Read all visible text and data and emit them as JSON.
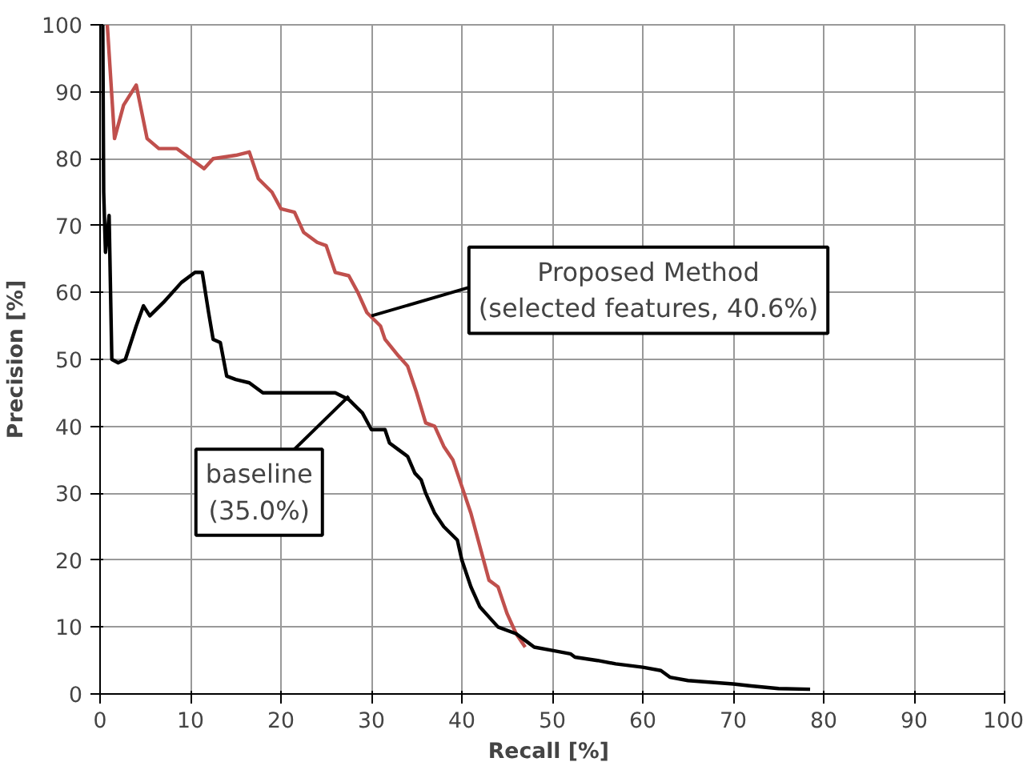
{
  "chart_data": {
    "type": "line",
    "xlabel": "Recall  [%]",
    "ylabel": "Precision [%]",
    "xlim": [
      0,
      100
    ],
    "ylim": [
      0,
      100
    ],
    "xticks": [
      0,
      10,
      20,
      30,
      40,
      50,
      60,
      70,
      80,
      90,
      100
    ],
    "yticks": [
      0,
      10,
      20,
      30,
      40,
      50,
      60,
      70,
      80,
      90,
      100
    ],
    "grid": true,
    "series": [
      {
        "color": "#c0504d",
        "x": [
          0.8,
          1.6,
          2.6,
          4,
          5.2,
          6.5,
          8.5,
          10,
          11.5,
          12.5,
          15,
          16.5,
          17.5,
          19,
          20,
          21.5,
          22.5,
          24,
          25,
          26,
          27.5,
          28.5,
          29.5,
          31,
          31.5,
          33,
          34,
          35,
          36,
          37,
          38,
          39,
          40,
          41,
          42,
          43,
          44,
          45,
          46,
          47
        ],
        "values": [
          100,
          83,
          88,
          91,
          83,
          81.5,
          81.5,
          80,
          78.5,
          80,
          80.5,
          81,
          77,
          75,
          72.5,
          72,
          69,
          67.5,
          67,
          63,
          62.5,
          60,
          57,
          55,
          53,
          50.5,
          49,
          45,
          40.5,
          40,
          37,
          35,
          31,
          27,
          22,
          17,
          16,
          12,
          9,
          7
        ]
      },
      {
        "color": "#000000",
        "x": [
          0.3,
          0.4,
          0.6,
          1,
          1.3,
          2,
          2.8,
          4,
          4.8,
          5.5,
          7,
          9,
          10.5,
          11.3,
          12,
          12.5,
          13.3,
          14,
          15,
          16.5,
          18,
          20,
          22,
          24,
          26,
          27.5,
          29,
          30,
          31.5,
          32,
          33,
          34,
          34.8,
          35.5,
          36,
          37,
          38,
          39.5,
          40,
          41,
          42,
          43,
          44,
          46,
          47,
          48,
          50,
          52,
          52.5,
          55,
          57,
          60,
          62,
          63,
          65,
          70,
          72,
          75,
          78.5
        ],
        "values": [
          100,
          75,
          66,
          71.5,
          50,
          49.5,
          50,
          55,
          58,
          56.5,
          58.5,
          61.5,
          63,
          63,
          57,
          53,
          52.5,
          47.5,
          47,
          46.5,
          45,
          45,
          45,
          45,
          45,
          44,
          42,
          39.5,
          39.5,
          37.5,
          36.5,
          35.5,
          33,
          32,
          30,
          27,
          25,
          23,
          20,
          16,
          13,
          11.5,
          10,
          9,
          8,
          7,
          6.5,
          6,
          5.5,
          5,
          4.5,
          4,
          3.5,
          2.5,
          2,
          1.5,
          1.2,
          0.8,
          0.7
        ]
      }
    ],
    "annotations": [
      {
        "text": "Proposed Method\n(selected features, 40.6%)",
        "x": 30,
        "y": 56.5
      },
      {
        "text": "baseline\n(35.0%)",
        "x": 27.5,
        "y": 44.5
      }
    ]
  }
}
